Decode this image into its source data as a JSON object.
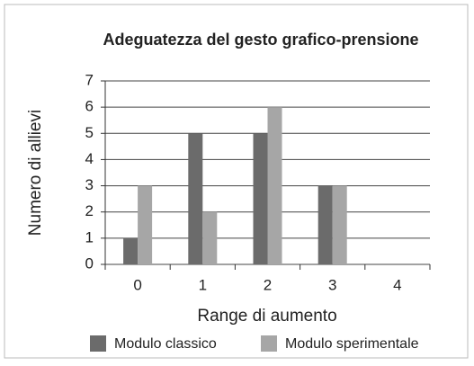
{
  "chart_data": {
    "type": "bar",
    "title": "Adeguatezza del gesto grafico-prensione",
    "x_label": "Range di aumento",
    "y_label": "Numero di allievi",
    "categories": [
      "0",
      "1",
      "2",
      "3",
      "4"
    ],
    "series": [
      {
        "name": "Modulo classico",
        "color": "#6b6b6b",
        "values": [
          1,
          5,
          5,
          3,
          0
        ]
      },
      {
        "name": "Modulo sperimentale",
        "color": "#a6a6a6",
        "values": [
          3,
          2,
          6,
          3,
          0
        ]
      }
    ],
    "ylim": [
      0,
      7
    ],
    "yticks": [
      0,
      1,
      2,
      3,
      4,
      5,
      6,
      7
    ],
    "grid": true,
    "legend": "bottom"
  }
}
